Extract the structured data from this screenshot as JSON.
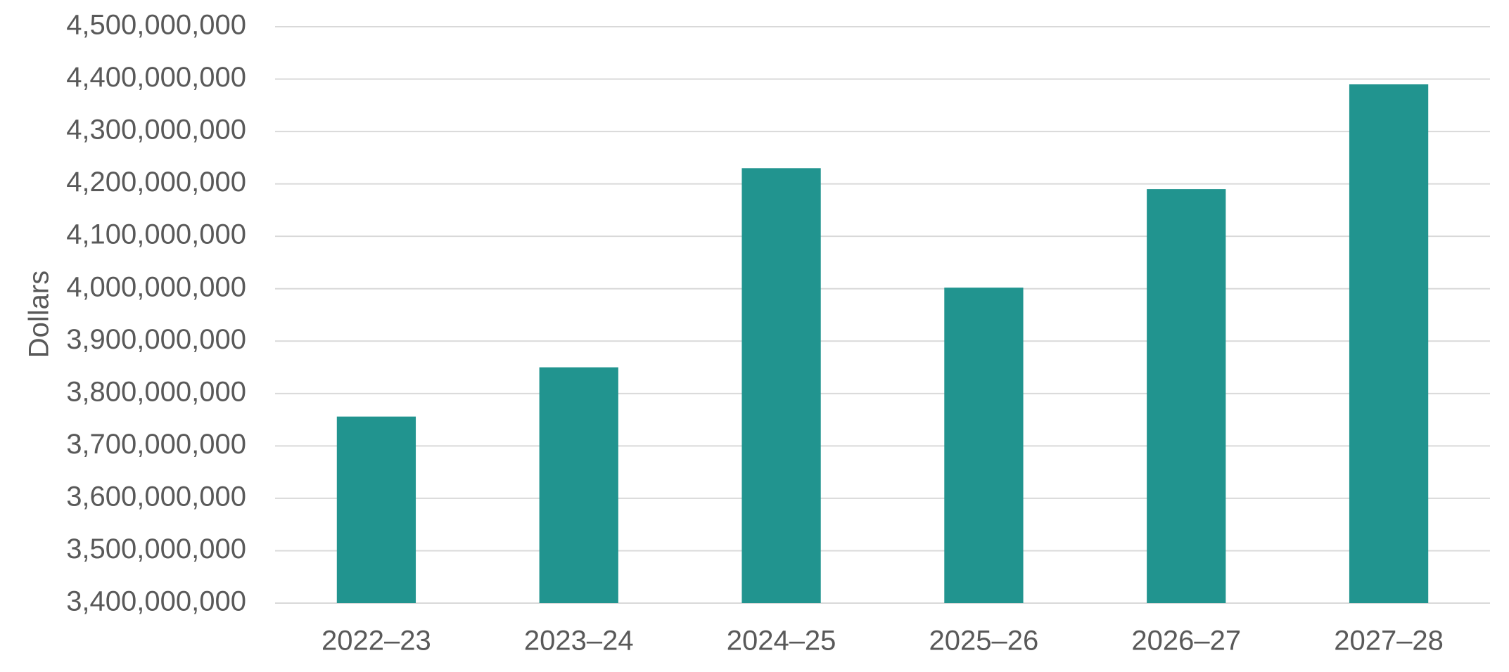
{
  "chart_data": {
    "type": "bar",
    "y_label": "Dollars",
    "categories": [
      "2022–23",
      "2023–24",
      "2024–25",
      "2025–26",
      "2026–27",
      "2027–28"
    ],
    "values": [
      3756000000,
      3850000000,
      4230000000,
      4002000000,
      4190000000,
      4390000000
    ],
    "color": "#21948f",
    "ylim": [
      3400000000,
      4500000000
    ],
    "yticks": [
      {
        "value": 3400000000,
        "label": "3,400,000,000"
      },
      {
        "value": 3500000000,
        "label": "3,500,000,000"
      },
      {
        "value": 3600000000,
        "label": "3,600,000,000"
      },
      {
        "value": 3700000000,
        "label": "3,700,000,000"
      },
      {
        "value": 3800000000,
        "label": "3,800,000,000"
      },
      {
        "value": 3900000000,
        "label": "3,900,000,000"
      },
      {
        "value": 4000000000,
        "label": "4,000,000,000"
      },
      {
        "value": 4100000000,
        "label": "4,100,000,000"
      },
      {
        "value": 4200000000,
        "label": "4,200,000,000"
      },
      {
        "value": 4300000000,
        "label": "4,300,000,000"
      },
      {
        "value": 4400000000,
        "label": "4,400,000,000"
      },
      {
        "value": 4500000000,
        "label": "4,500,000,000"
      }
    ],
    "grid": true
  }
}
